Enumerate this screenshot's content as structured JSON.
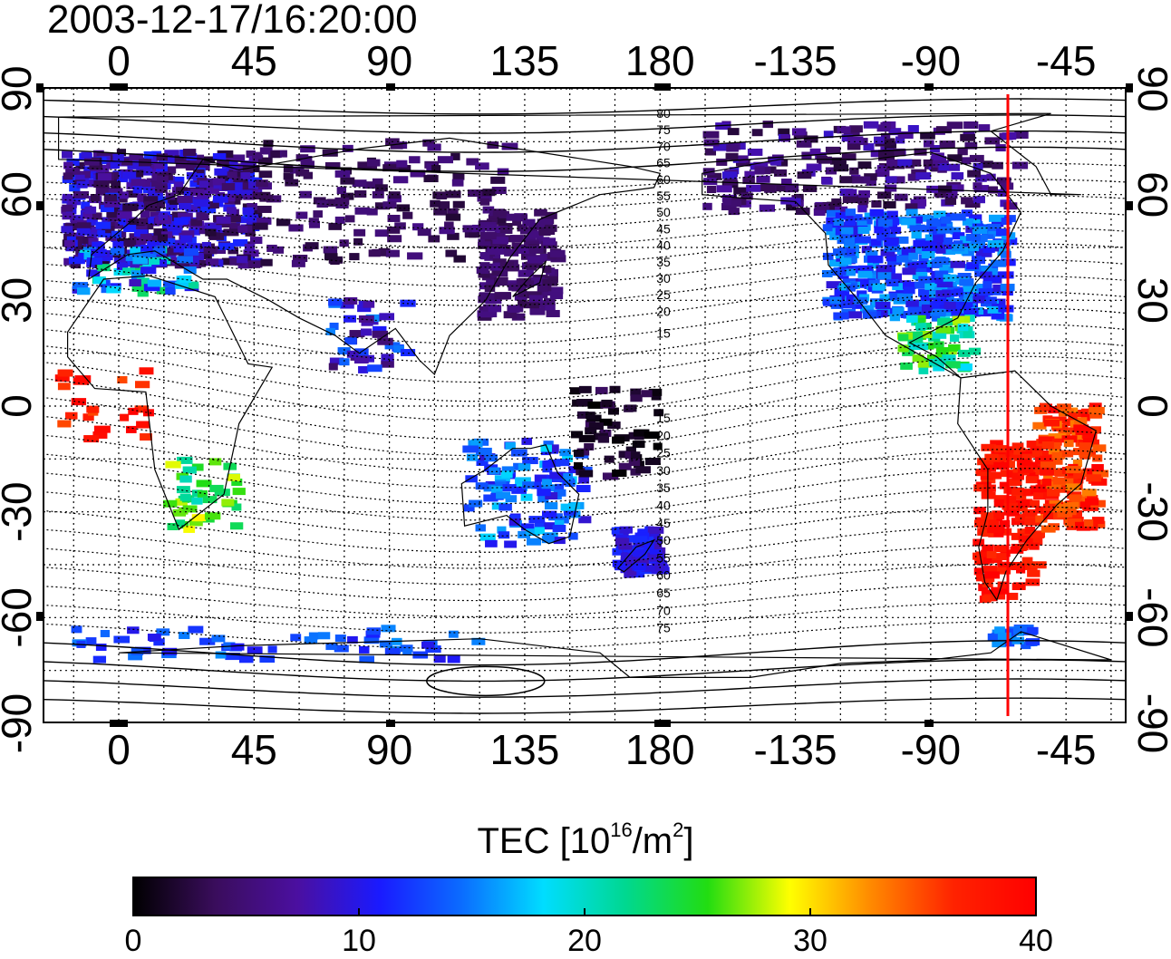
{
  "title": "2003-12-17/16:20:00",
  "map": {
    "top_lon_labels": [
      "0",
      "45",
      "90",
      "135",
      "180",
      "-135",
      "-90",
      "-45"
    ],
    "bottom_lon_labels": [
      "0",
      "45",
      "90",
      "135",
      "180",
      "-135",
      "-90",
      "-45"
    ],
    "left_lat_labels": [
      "90",
      "60",
      "30",
      "0",
      "-30",
      "-60",
      "-90"
    ],
    "right_lat_labels": [
      "90",
      "60",
      "30",
      "0",
      "-30",
      "-60",
      "-90"
    ],
    "marker_line_color": "#ff0000",
    "contour_labels_north": [
      "80",
      "75",
      "70",
      "65",
      "60",
      "55",
      "50",
      "45",
      "40",
      "35",
      "30",
      "25",
      "20",
      "15"
    ],
    "contour_labels_south": [
      "15",
      "20",
      "25",
      "30",
      "35",
      "40",
      "45",
      "50",
      "55",
      "60",
      "65",
      "70",
      "75"
    ]
  },
  "colorbar": {
    "title_prefix": "TEC  [10",
    "title_exp1": "16",
    "title_mid": "/m",
    "title_exp2": "2",
    "title_suffix": "]",
    "ticks": [
      "0",
      "10",
      "20",
      "30",
      "40"
    ],
    "range": [
      0,
      40
    ],
    "colors": [
      "#000000",
      "#3a0d5c",
      "#4b0fa0",
      "#1a1aff",
      "#0b6cff",
      "#00ddff",
      "#00d890",
      "#22dd11",
      "#ffff00",
      "#ff8800",
      "#ff2200",
      "#ff0000"
    ]
  }
}
